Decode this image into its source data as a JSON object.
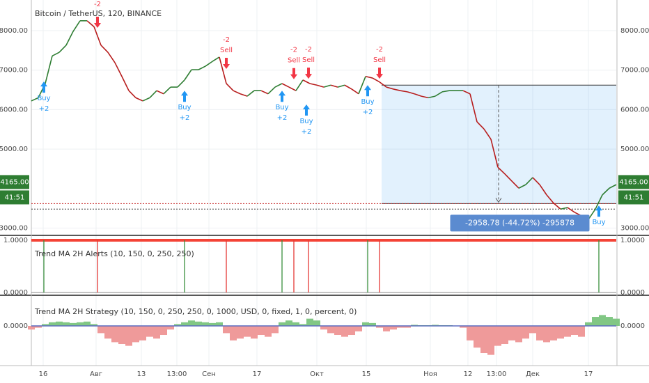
{
  "chart_data": [
    {
      "type": "line",
      "title": "Bitcoin / TetherUS, 120, BINANCE",
      "xlim": [
        0,
        84
      ],
      "xticks": [
        {
          "value": 1.7,
          "label": "16"
        },
        {
          "value": 9.3,
          "label": "Авг"
        },
        {
          "value": 15.8,
          "label": "13"
        },
        {
          "value": 20.9,
          "label": "13:00"
        },
        {
          "value": 25.5,
          "label": "Сен"
        },
        {
          "value": 32.4,
          "label": "17"
        },
        {
          "value": 41,
          "label": "Окт"
        },
        {
          "value": 48.1,
          "label": "15"
        },
        {
          "value": 57.3,
          "label": "Ноя"
        },
        {
          "value": 62.7,
          "label": "12"
        },
        {
          "value": 66.8,
          "label": "13:00"
        },
        {
          "value": 72,
          "label": "Дек"
        },
        {
          "value": 80,
          "label": "17"
        }
      ],
      "ylim": [
        2815,
        8776
      ],
      "yticks": [
        {
          "value": 3000,
          "label": "3000.00"
        },
        {
          "value": 5000,
          "label": "5000.00"
        },
        {
          "value": 6000,
          "label": "6000.00"
        },
        {
          "value": 7000,
          "label": "7000.00"
        },
        {
          "value": 8000,
          "label": "8000.00"
        }
      ],
      "grid": true,
      "up_color": "#2e7d32",
      "down_color": "#b71c1c",
      "values": [
        6220,
        6300,
        6660,
        7360,
        7450,
        7630,
        7980,
        8250,
        8250,
        8100,
        7630,
        7450,
        7190,
        6840,
        6480,
        6300,
        6220,
        6300,
        6480,
        6400,
        6570,
        6570,
        6750,
        7010,
        7010,
        7100,
        7220,
        7330,
        6660,
        6480,
        6400,
        6340,
        6480,
        6480,
        6400,
        6570,
        6660,
        6570,
        6480,
        6750,
        6660,
        6620,
        6570,
        6620,
        6570,
        6620,
        6520,
        6400,
        6840,
        6800,
        6700,
        6570,
        6520,
        6480,
        6450,
        6400,
        6340,
        6300,
        6340,
        6450,
        6480,
        6480,
        6480,
        6400,
        5690,
        5510,
        5250,
        4540,
        4370,
        4190,
        4010,
        4100,
        4280,
        4100,
        3840,
        3630,
        3480,
        3520,
        3400,
        3310,
        3220,
        3480,
        3840,
        4010,
        4100
      ],
      "signals": [
        {
          "kind": "buy",
          "text": "Buy",
          "amount": "+2",
          "x": 1.8,
          "y": 6710
        },
        {
          "kind": "sell",
          "amount": "-2",
          "x": 9.5,
          "y": 8070
        },
        {
          "kind": "buy",
          "text": "Buy",
          "amount": "+2",
          "x": 22,
          "y": 6480
        },
        {
          "kind": "sell",
          "text": "Sell",
          "amount": "-2",
          "x": 28,
          "y": 7030
        },
        {
          "kind": "buy",
          "text": "Buy",
          "amount": "+2",
          "x": 36,
          "y": 6480
        },
        {
          "kind": "sell",
          "text": "Sell",
          "amount": "-2",
          "x": 37.7,
          "y": 6770
        },
        {
          "kind": "buy",
          "text": "Buy",
          "amount": "+2",
          "x": 39.5,
          "y": 6130
        },
        {
          "kind": "sell",
          "text": "Sell",
          "amount": "-2",
          "x": 39.8,
          "y": 6780
        },
        {
          "kind": "buy",
          "text": "Buy",
          "amount": "+2",
          "x": 48.3,
          "y": 6620
        },
        {
          "kind": "sell",
          "text": "Sell",
          "amount": "-2",
          "x": 50,
          "y": 6780
        },
        {
          "kind": "buy",
          "text": "Buy",
          "x": 81.5,
          "y": 3570
        }
      ],
      "buy_color": "#2196f3",
      "sell_color": "#f23645",
      "levels": [
        {
          "value": 3620,
          "color": "#c62828"
        },
        {
          "value": 3480,
          "color": "#333333"
        }
      ],
      "measure": {
        "label": "-2958.78 (-44.72%) -295878",
        "x": [
          50.3,
          84
        ],
        "y": [
          6620,
          3620
        ],
        "arrow_x": 67.1
      },
      "last_price": {
        "value": 4165,
        "label": "4165.00"
      },
      "countdown": "41:51"
    },
    {
      "type": "impulse",
      "title": "Trend MA 2H Alerts (10, 150, 0, 250, 250)",
      "xlim": [
        0,
        84
      ],
      "ylim": [
        0,
        1
      ],
      "yticks": [
        {
          "value": 0,
          "label": "0.0000"
        },
        {
          "value": 1,
          "label": "1.0000"
        }
      ],
      "hline": {
        "value": 1,
        "color": "#f44336"
      },
      "series": [
        {
          "color": "#388e3c",
          "x": [
            1.8,
            22,
            36,
            48.3,
            81.5
          ],
          "values": [
            1,
            1,
            1,
            1,
            1
          ]
        },
        {
          "color": "#e53935",
          "x": [
            9.5,
            28,
            37.7,
            39.8,
            50
          ],
          "values": [
            1,
            1,
            1,
            1,
            1
          ]
        }
      ]
    },
    {
      "type": "bar",
      "title": "Trend MA 2H Strategy (10, 150, 0, 250, 250, 0, 1000, USD, 0, fixed, 1, 0, percent, 0)",
      "xlim": [
        0,
        84
      ],
      "ylim": [
        -1,
        0.77
      ],
      "yticks": [
        {
          "value": 0,
          "label": "0.0000"
        }
      ],
      "pos_color": "#81c784",
      "neg_color": "#ef9a9a",
      "values": [
        -0.1,
        -0.05,
        0.05,
        0.1,
        0.12,
        0.1,
        0.08,
        0.1,
        0.12,
        0.05,
        -0.2,
        -0.35,
        -0.45,
        -0.5,
        -0.55,
        -0.45,
        -0.4,
        -0.3,
        -0.35,
        -0.25,
        -0.1,
        0.05,
        0.1,
        0.15,
        0.12,
        0.1,
        0.08,
        0.1,
        -0.2,
        -0.4,
        -0.35,
        -0.3,
        -0.35,
        -0.25,
        -0.3,
        -0.2,
        0.1,
        0.15,
        0.1,
        0.05,
        0.2,
        0.15,
        -0.1,
        -0.2,
        -0.25,
        -0.3,
        -0.25,
        -0.15,
        0.1,
        0.08,
        -0.05,
        -0.15,
        -0.1,
        -0.05,
        -0.05,
        0.03,
        0.02,
        0.02,
        0.03,
        0.02,
        0.02,
        0.01,
        -0.05,
        -0.4,
        -0.6,
        -0.75,
        -0.8,
        -0.55,
        -0.5,
        -0.4,
        -0.45,
        -0.35,
        -0.2,
        -0.4,
        -0.45,
        -0.4,
        -0.35,
        -0.3,
        -0.25,
        -0.3,
        0.1,
        0.25,
        0.3,
        0.25,
        0.2
      ]
    }
  ]
}
